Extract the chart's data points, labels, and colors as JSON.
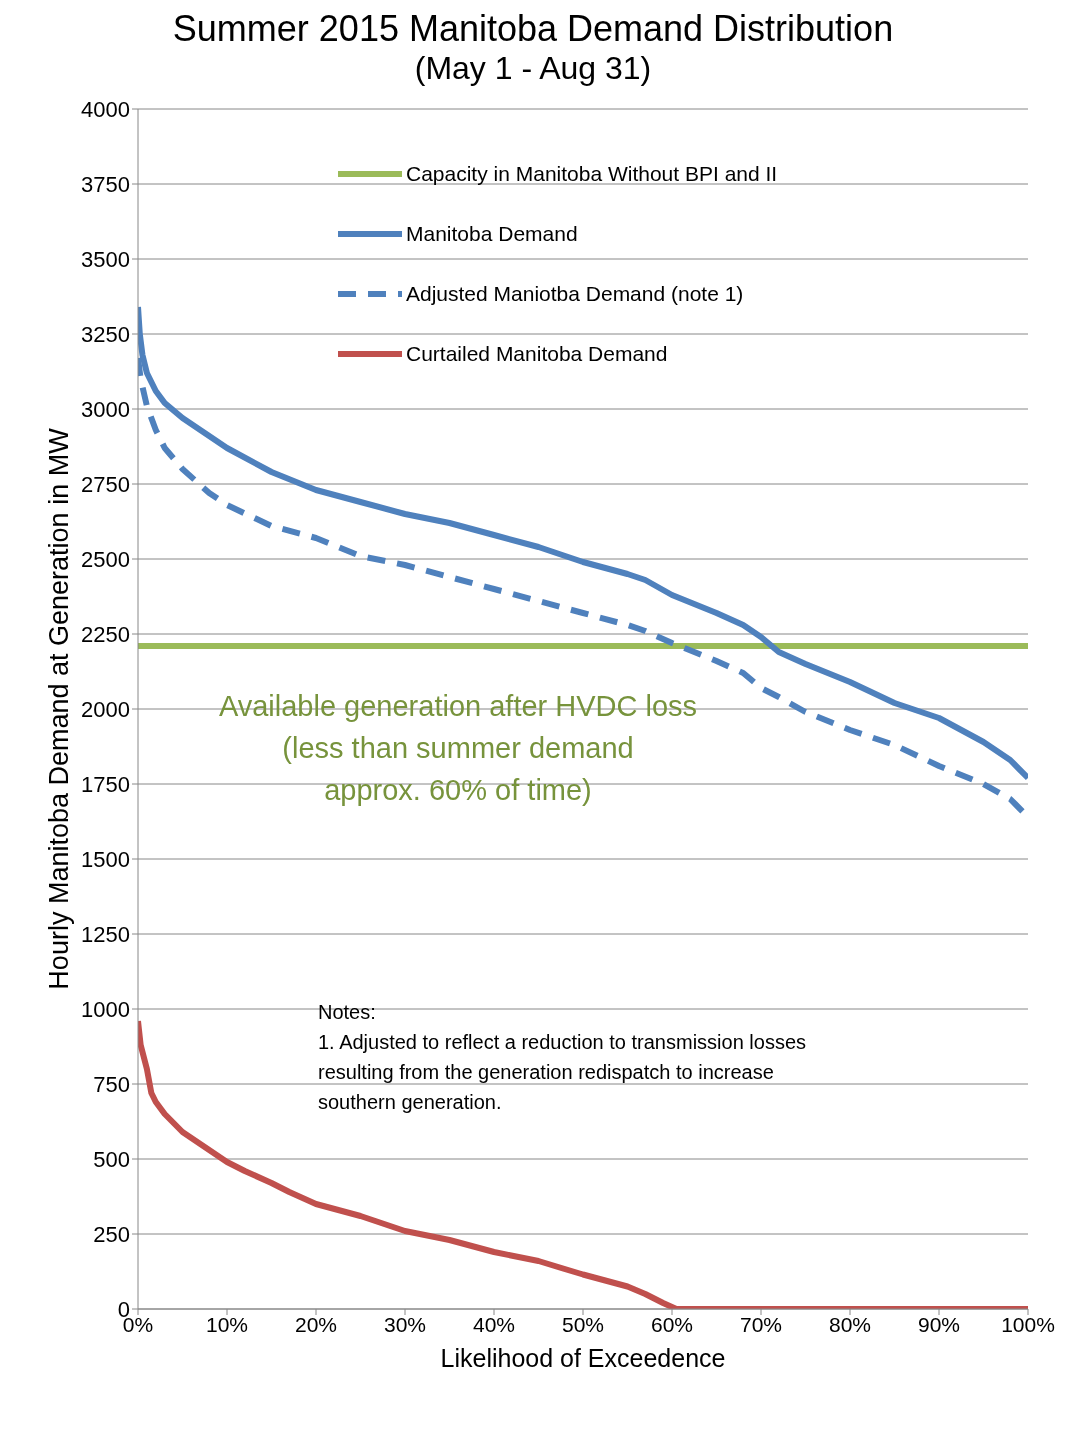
{
  "chart_data": {
    "type": "line",
    "title": "Summer 2015 Manitoba Demand Distribution",
    "subtitle": "(May 1 - Aug 31)",
    "xlabel": "Likelihood of Exceedence",
    "ylabel": "Hourly Manitoba Demand at Generation in MW",
    "xlim": [
      0,
      100
    ],
    "xticks": [
      {
        "value": 0,
        "label": "0%"
      },
      {
        "value": 10,
        "label": "10%"
      },
      {
        "value": 20,
        "label": "20%"
      },
      {
        "value": 30,
        "label": "30%"
      },
      {
        "value": 40,
        "label": "40%"
      },
      {
        "value": 50,
        "label": "50%"
      },
      {
        "value": 60,
        "label": "60%"
      },
      {
        "value": 70,
        "label": "70%"
      },
      {
        "value": 80,
        "label": "80%"
      },
      {
        "value": 90,
        "label": "90%"
      },
      {
        "value": 100,
        "label": "100%"
      }
    ],
    "ylim": [
      0,
      4000
    ],
    "yticks": [
      0,
      250,
      500,
      750,
      1000,
      1250,
      1500,
      1750,
      2000,
      2250,
      2500,
      2750,
      3000,
      3250,
      3500,
      3750,
      4000
    ],
    "grid": "y",
    "legend": "top",
    "marker": "none",
    "series": [
      {
        "name": "Capacity in Manitoba Without BPI and II",
        "color": "#9bbb59",
        "x": [
          0,
          100
        ],
        "values": [
          2210,
          2210
        ]
      },
      {
        "name": "Manitoba Demand",
        "color": "#4f81bd",
        "x": [
          0,
          0.2,
          0.5,
          1,
          2,
          3,
          5,
          7,
          10,
          15,
          20,
          25,
          30,
          35,
          40,
          45,
          50,
          55,
          57,
          60,
          65,
          68,
          70,
          72,
          75,
          80,
          85,
          90,
          95,
          98,
          100
        ],
        "values": [
          3340,
          3250,
          3180,
          3120,
          3060,
          3020,
          2970,
          2930,
          2870,
          2790,
          2730,
          2690,
          2650,
          2620,
          2580,
          2540,
          2490,
          2450,
          2430,
          2380,
          2320,
          2280,
          2240,
          2190,
          2150,
          2090,
          2020,
          1970,
          1890,
          1830,
          1770
        ]
      },
      {
        "name": "Adjusted Maniotba Demand (note 1)",
        "color": "#4f81bd",
        "line_style": "dashed",
        "x": [
          0,
          0.3,
          1,
          2,
          3,
          5,
          8,
          10,
          15,
          20,
          25,
          30,
          35,
          40,
          45,
          50,
          55,
          57,
          60,
          65,
          68,
          70,
          72,
          75,
          80,
          85,
          90,
          95,
          98,
          100
        ],
        "values": [
          3170,
          3100,
          3010,
          2930,
          2870,
          2800,
          2720,
          2680,
          2610,
          2570,
          2510,
          2480,
          2440,
          2400,
          2360,
          2320,
          2280,
          2260,
          2220,
          2160,
          2120,
          2070,
          2040,
          1990,
          1930,
          1880,
          1810,
          1750,
          1700,
          1640
        ]
      },
      {
        "name": "Curtailed Manitoba Demand",
        "color": "#c0504d",
        "x": [
          0,
          0.3,
          1,
          1.5,
          2,
          3,
          5,
          7,
          10,
          12,
          15,
          17,
          20,
          25,
          30,
          35,
          40,
          45,
          50,
          55,
          57,
          59,
          60.5,
          100
        ],
        "values": [
          960,
          880,
          800,
          720,
          690,
          650,
          590,
          550,
          490,
          460,
          420,
          390,
          350,
          310,
          260,
          230,
          190,
          160,
          115,
          75,
          50,
          20,
          0,
          0
        ]
      }
    ],
    "annotations": [
      "Available generation after HVDC loss\n(less than summer demand\napprox. 60% of time)",
      "Notes:\n1. Adjusted to reflect a reduction to transmission losses\nresulting from the generation redispatch to increase\nsouthern generation."
    ]
  }
}
